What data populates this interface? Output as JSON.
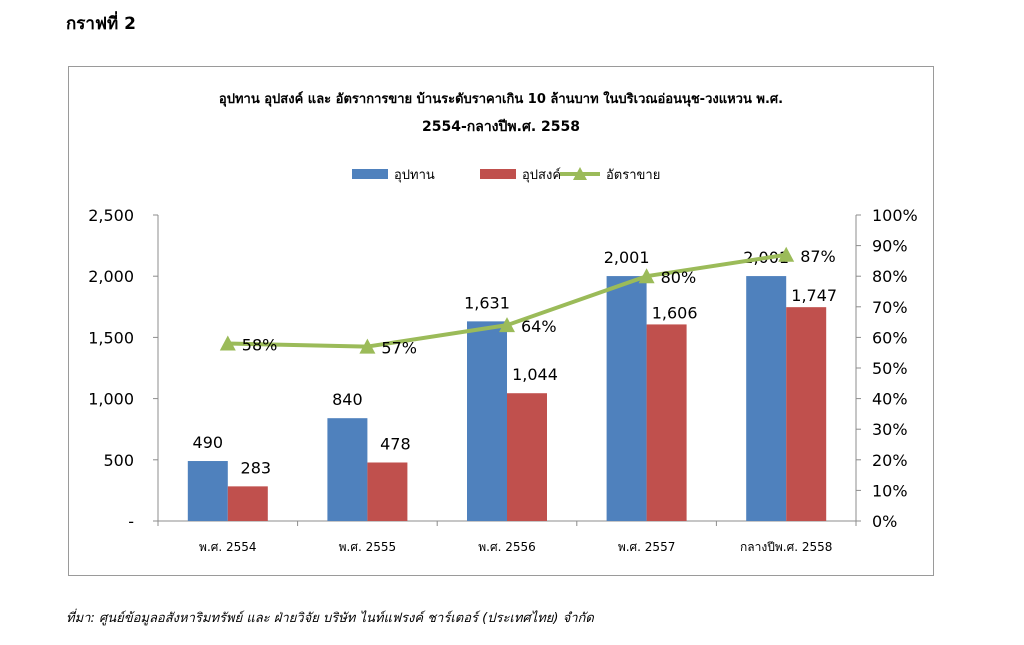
{
  "heading": "กราฟที่ 2",
  "source": "ที่มา: ศูนย์ข้อมูลอสังหาริมทรัพย์ และ ฝ่ายวิจัย บริษัท ไนท์แฟรงค์ ชาร์เตอร์ (ประเทศไทย) จำกัด",
  "chart_data": {
    "type": "bar",
    "title_line1": "อุปทาน อุปสงค์ และ อัตราการขาย บ้านระดับราคาเกิน 10 ล้านบาท ในบริเวณอ่อนนุช-วงแหวน พ.ศ.",
    "title_line2": "2554-กลางปีพ.ศ. 2558",
    "categories": [
      "พ.ศ. 2554",
      "พ.ศ. 2555",
      "พ.ศ. 2556",
      "พ.ศ. 2557",
      "กลางปีพ.ศ. 2558"
    ],
    "series": [
      {
        "name": "อุปทาน",
        "type": "bar",
        "axis": "left",
        "color": "#4f81bd",
        "values": [
          490,
          840,
          1631,
          2001,
          2001
        ],
        "labels": [
          "490",
          "840",
          "1,631",
          "2,001",
          "2,001"
        ]
      },
      {
        "name": "อุปสงค์",
        "type": "bar",
        "axis": "left",
        "color": "#c0504d",
        "values": [
          283,
          478,
          1044,
          1606,
          1747
        ],
        "labels": [
          "283",
          "478",
          "1,044",
          "1,606",
          "1,747"
        ]
      },
      {
        "name": "อัตราขาย",
        "type": "line",
        "axis": "right",
        "color": "#9bbb59",
        "values": [
          58,
          57,
          64,
          80,
          87
        ],
        "labels": [
          "58%",
          "57%",
          "64%",
          "80%",
          "87%"
        ]
      }
    ],
    "left_axis": {
      "ylim": [
        0,
        2500
      ],
      "ticks": [
        0,
        500,
        1000,
        1500,
        2000,
        2500
      ],
      "tick_labels": [
        "-",
        "500",
        "1,000",
        "1,500",
        "2,000",
        "2,500"
      ]
    },
    "right_axis": {
      "ylim": [
        0,
        100
      ],
      "ticks": [
        0,
        10,
        20,
        30,
        40,
        50,
        60,
        70,
        80,
        90,
        100
      ],
      "tick_labels": [
        "0%",
        "10%",
        "20%",
        "30%",
        "40%",
        "50%",
        "60%",
        "70%",
        "80%",
        "90%",
        "100%"
      ]
    },
    "grid": false,
    "legend_position": "top"
  }
}
